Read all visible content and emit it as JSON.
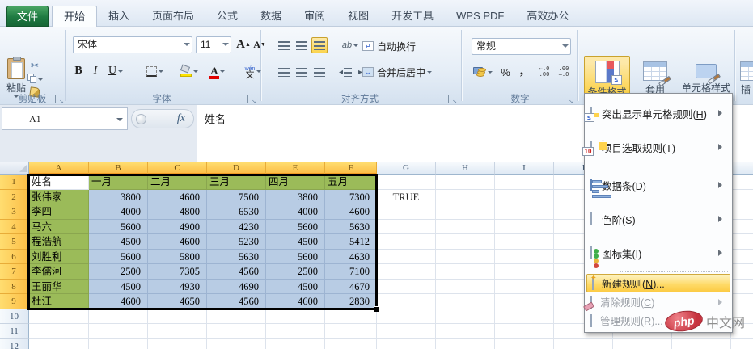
{
  "tab_bar": {
    "file_label": "文件",
    "tabs": [
      "开始",
      "插入",
      "页面布局",
      "公式",
      "数据",
      "审阅",
      "视图",
      "开发工具",
      "WPS PDF",
      "高效办公"
    ],
    "active_tab": "开始"
  },
  "ribbon": {
    "clipboard": {
      "group_label": "剪贴板",
      "paste_label": "粘贴",
      "cut_glyph": "✂"
    },
    "font": {
      "group_label": "字体",
      "font_name": "宋体",
      "font_size": "11",
      "bold": "B",
      "italic": "I",
      "underline": "U",
      "grow": "A",
      "shrink": "A",
      "pinyin_top": "wén",
      "pinyin_bottom": "文"
    },
    "alignment": {
      "group_label": "对齐方式",
      "wrap_label": "自动换行",
      "merge_label": "合并后居中",
      "orientation_label": "ab"
    },
    "number": {
      "group_label": "数字",
      "format_value": "常规",
      "percent": "%",
      "comma": ",",
      "inc_decimal": "←.0\n.00",
      "dec_decimal": ".00\n→.0"
    },
    "styles": {
      "conditional_label": "条件格式",
      "apply_table_line1": "套用",
      "apply_table_line2": "表格格式",
      "cell_styles_label": "单元格样式",
      "insert_partial": "插"
    }
  },
  "formula_bar": {
    "name_box": "A1",
    "fx_label": "fx",
    "content": "姓名"
  },
  "sheet": {
    "col_headers": [
      "A",
      "B",
      "C",
      "D",
      "E",
      "F",
      "G",
      "H",
      "I",
      "J"
    ],
    "selected_col_count": 6,
    "row_count": 12,
    "selected_row_count": 9,
    "table": {
      "header_row": {
        "name": "姓名",
        "months": [
          "一月",
          "二月",
          "三月",
          "四月",
          "五月"
        ]
      },
      "data_rows": [
        {
          "name": "张伟家",
          "values": [
            "3800",
            "4600",
            "7500",
            "3800",
            "7300"
          ]
        },
        {
          "name": "李四",
          "values": [
            "4000",
            "4800",
            "6530",
            "4000",
            "4600"
          ]
        },
        {
          "name": "马六",
          "values": [
            "5600",
            "4900",
            "4230",
            "5600",
            "5630"
          ]
        },
        {
          "name": "程浩航",
          "values": [
            "4500",
            "4600",
            "5230",
            "4500",
            "5412"
          ]
        },
        {
          "name": "刘胜利",
          "values": [
            "5600",
            "5800",
            "5630",
            "5600",
            "4630"
          ]
        },
        {
          "name": "李儒河",
          "values": [
            "2500",
            "7305",
            "4560",
            "2500",
            "7100"
          ]
        },
        {
          "name": "王丽华",
          "values": [
            "4500",
            "4930",
            "4690",
            "4500",
            "4670"
          ]
        },
        {
          "name": "杜江",
          "values": [
            "4600",
            "4650",
            "4560",
            "4600",
            "2830"
          ]
        }
      ]
    },
    "extra_cell": {
      "col": "G",
      "row": 2,
      "value": "TRUE"
    }
  },
  "menu": {
    "items": [
      {
        "type": "big",
        "icon": "highlight-cells-rules-icon",
        "text": "突出显示单元格规则",
        "hotkey": "H",
        "suffix": "",
        "arrow": true
      },
      {
        "type": "big",
        "icon": "top-bottom-rules-icon",
        "text": "项目选取规则",
        "hotkey": "T",
        "suffix": "",
        "arrow": true
      },
      {
        "type": "sep"
      },
      {
        "type": "big",
        "icon": "data-bars-icon",
        "text": "数据条",
        "hotkey": "D",
        "suffix": "",
        "arrow": true
      },
      {
        "type": "big",
        "icon": "color-scales-icon",
        "text": "色阶",
        "hotkey": "S",
        "suffix": "",
        "arrow": true
      },
      {
        "type": "big",
        "icon": "icon-sets-icon",
        "text": "图标集",
        "hotkey": "I",
        "suffix": "",
        "arrow": true
      },
      {
        "type": "sep"
      },
      {
        "type": "small",
        "icon": "new-rule-icon",
        "text": "新建规则",
        "hotkey": "N",
        "suffix": "...",
        "highlighted": true
      },
      {
        "type": "small",
        "icon": "clear-rules-icon",
        "text": "清除规则",
        "hotkey": "C",
        "suffix": "",
        "arrow": true,
        "disabled": true
      },
      {
        "type": "small",
        "icon": "manage-rules-icon",
        "text": "管理规则",
        "hotkey": "R",
        "suffix": "...",
        "disabled": true
      }
    ]
  },
  "watermark": {
    "badge": "php",
    "text": "中文网"
  },
  "colors": {
    "accent_highlight": "#fbd34e",
    "selection_fill": "#b8cce4",
    "table_green": "#9bbb59",
    "selected_header": "#fcbf48",
    "file_tab_green": "#1e7a41",
    "menu_highlight": "#fed965"
  }
}
